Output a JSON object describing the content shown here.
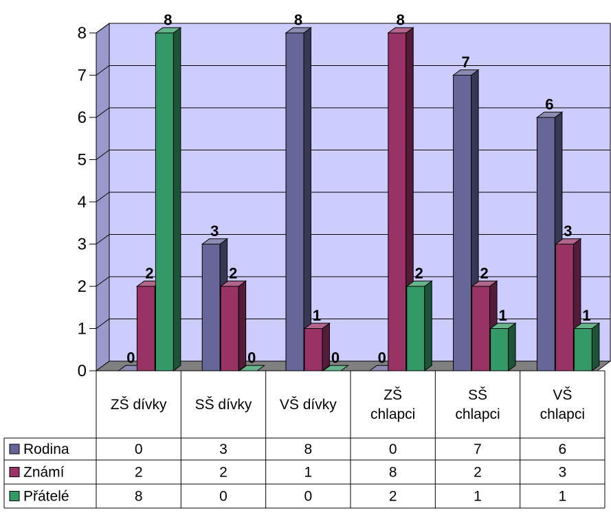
{
  "chart_data": {
    "type": "bar",
    "categories": [
      "ZŠ dívky",
      "SŠ dívky",
      "VŠ dívky",
      "ZŠ chlapci",
      "SŠ chlapci",
      "VŠ chlapci"
    ],
    "series": [
      {
        "name": "Rodina",
        "color": "#666699",
        "values": [
          0,
          3,
          8,
          0,
          7,
          6
        ]
      },
      {
        "name": "Známí",
        "color": "#993366",
        "values": [
          2,
          2,
          1,
          8,
          2,
          3
        ]
      },
      {
        "name": "Přátelé",
        "color": "#339966",
        "values": [
          8,
          0,
          0,
          2,
          1,
          1
        ]
      }
    ],
    "yticks": [
      0,
      1,
      2,
      3,
      4,
      5,
      6,
      7,
      8
    ],
    "ylim": [
      0,
      8
    ],
    "grid": true,
    "background_color": "#ccccff",
    "legend": "data-table-below",
    "data_labels": true
  }
}
